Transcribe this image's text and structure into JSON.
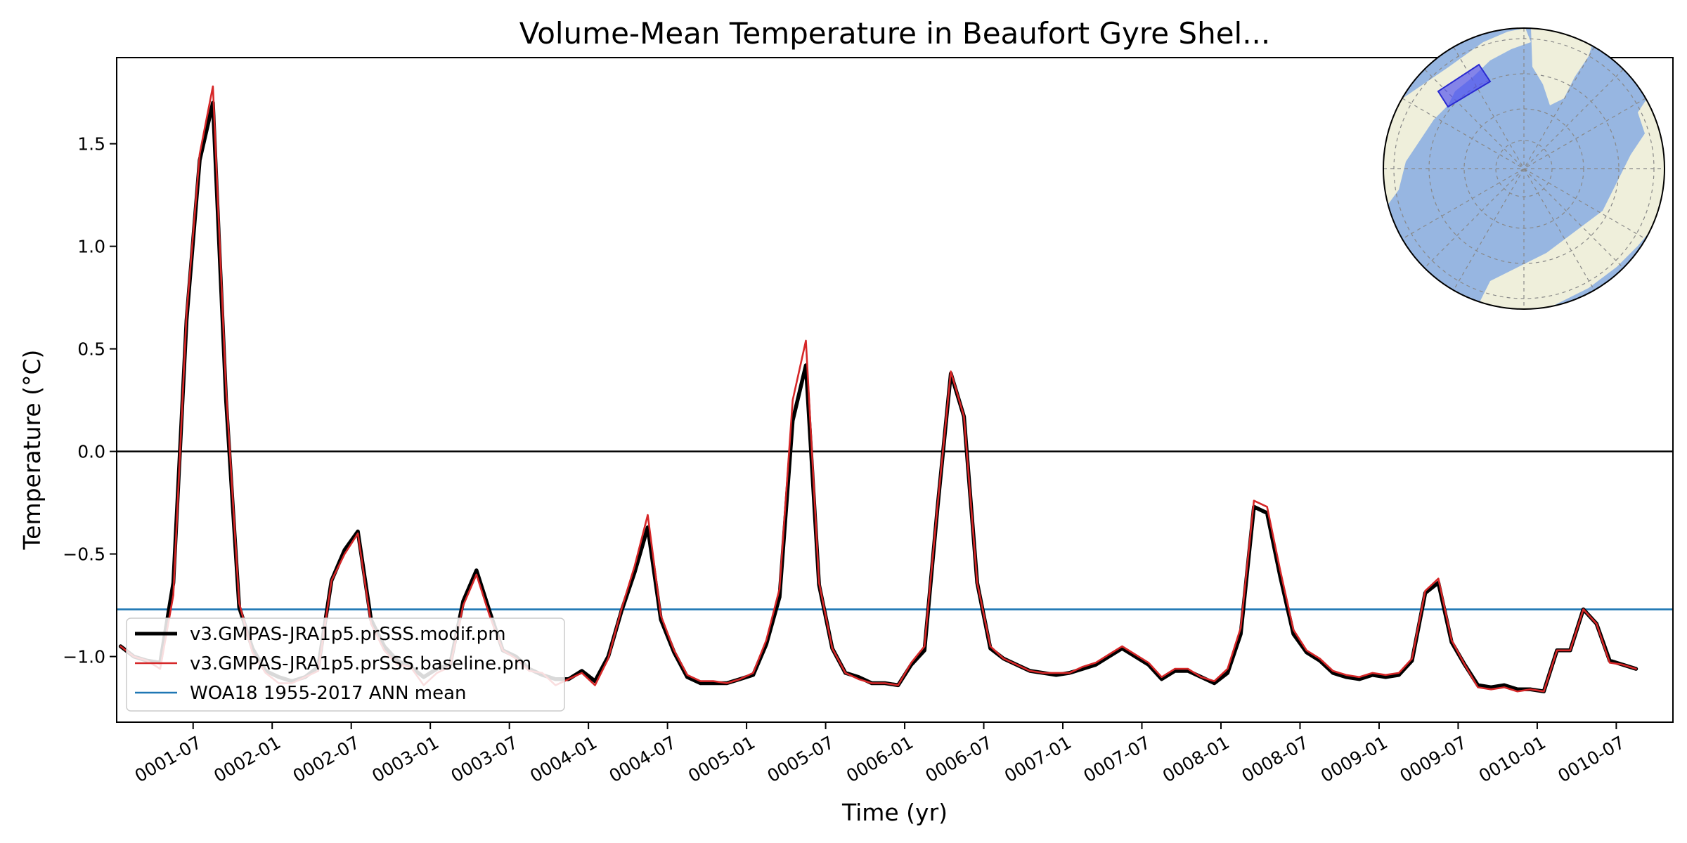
{
  "chart_data": {
    "type": "line",
    "title": "Volume-Mean Temperature in Beaufort Gyre Shel...",
    "xlabel": "Time (yr)",
    "ylabel": "Temperature ($^\\circ$C)",
    "ylabel_display": "Temperature (°C)",
    "x_units": "months since 0001-01",
    "xlim": [
      0.2,
      118.3
    ],
    "ylim": [
      -1.32,
      1.92
    ],
    "x_ticks": [
      {
        "month": 6,
        "label": "0001-07"
      },
      {
        "month": 12,
        "label": "0002-01"
      },
      {
        "month": 18,
        "label": "0002-07"
      },
      {
        "month": 24,
        "label": "0003-01"
      },
      {
        "month": 30,
        "label": "0003-07"
      },
      {
        "month": 36,
        "label": "0004-01"
      },
      {
        "month": 42,
        "label": "0004-07"
      },
      {
        "month": 48,
        "label": "0005-01"
      },
      {
        "month": 54,
        "label": "0005-07"
      },
      {
        "month": 60,
        "label": "0006-01"
      },
      {
        "month": 66,
        "label": "0006-07"
      },
      {
        "month": 72,
        "label": "0007-01"
      },
      {
        "month": 78,
        "label": "0007-07"
      },
      {
        "month": 84,
        "label": "0008-01"
      },
      {
        "month": 90,
        "label": "0008-07"
      },
      {
        "month": 96,
        "label": "0009-01"
      },
      {
        "month": 102,
        "label": "0009-07"
      },
      {
        "month": 108,
        "label": "0010-01"
      },
      {
        "month": 114,
        "label": "0010-07"
      }
    ],
    "y_ticks": [
      {
        "value": 1.5,
        "label": "1.5"
      },
      {
        "value": 1.0,
        "label": "1.0"
      },
      {
        "value": 0.5,
        "label": "0.5"
      },
      {
        "value": 0.0,
        "label": "0.0"
      },
      {
        "value": -0.5,
        "label": "−0.5"
      },
      {
        "value": -1.0,
        "label": "−1.0"
      }
    ],
    "zero_line": 0.0,
    "legend_position": "lower-left",
    "inset_map": "north-polar stereographic map with the Beaufort Gyre shelf region highlighted",
    "series": [
      {
        "name": "v3.GMPAS-JRA1p5.prSSS.modif.pm",
        "color": "#000000",
        "style": "thick",
        "x_start": 0.5,
        "x_step": 1,
        "values": [
          -0.95,
          -1.0,
          -1.02,
          -1.03,
          -0.64,
          0.64,
          1.42,
          1.7,
          0.25,
          -0.76,
          -0.96,
          -1.07,
          -1.1,
          -1.12,
          -1.1,
          -1.05,
          -0.63,
          -0.48,
          -0.39,
          -0.82,
          -0.95,
          -1.02,
          -1.05,
          -1.1,
          -1.06,
          -1.04,
          -0.73,
          -0.58,
          -0.78,
          -0.97,
          -1.0,
          -1.06,
          -1.09,
          -1.11,
          -1.11,
          -1.07,
          -1.12,
          -1.0,
          -0.78,
          -0.59,
          -0.37,
          -0.82,
          -0.98,
          -1.1,
          -1.13,
          -1.13,
          -1.13,
          -1.11,
          -1.09,
          -0.94,
          -0.71,
          0.15,
          0.42,
          -0.65,
          -0.96,
          -1.08,
          -1.1,
          -1.13,
          -1.13,
          -1.14,
          -1.04,
          -0.97,
          -0.27,
          0.38,
          0.17,
          -0.64,
          -0.96,
          -1.01,
          -1.04,
          -1.07,
          -1.08,
          -1.09,
          -1.08,
          -1.06,
          -1.04,
          -1.0,
          -0.96,
          -1.0,
          -1.04,
          -1.11,
          -1.07,
          -1.07,
          -1.1,
          -1.13,
          -1.08,
          -0.89,
          -0.27,
          -0.3,
          -0.61,
          -0.89,
          -0.98,
          -1.02,
          -1.08,
          -1.1,
          -1.11,
          -1.09,
          -1.1,
          -1.09,
          -1.02,
          -0.69,
          -0.64,
          -0.93,
          -1.04,
          -1.14,
          -1.15,
          -1.14,
          -1.16,
          -1.16,
          -1.17,
          -0.97,
          -0.97,
          -0.77,
          -0.84,
          -1.02,
          -1.04,
          -1.06
        ]
      },
      {
        "name": "v3.GMPAS-JRA1p5.prSSS.baseline.pm",
        "color": "#d62728",
        "style": "thin",
        "x_start": 0.5,
        "x_step": 1,
        "values": [
          -0.95,
          -1.0,
          -1.02,
          -1.06,
          -0.7,
          0.67,
          1.45,
          1.78,
          0.3,
          -0.74,
          -0.98,
          -1.08,
          -1.13,
          -1.13,
          -1.1,
          -1.07,
          -0.63,
          -0.5,
          -0.4,
          -0.84,
          -0.97,
          -1.04,
          -1.05,
          -1.14,
          -1.08,
          -1.05,
          -0.75,
          -0.6,
          -0.8,
          -0.97,
          -1.01,
          -1.07,
          -1.08,
          -1.14,
          -1.11,
          -1.08,
          -1.14,
          -1.01,
          -0.77,
          -0.56,
          -0.31,
          -0.8,
          -0.97,
          -1.09,
          -1.12,
          -1.12,
          -1.13,
          -1.11,
          -1.08,
          -0.92,
          -0.67,
          0.25,
          0.54,
          -0.64,
          -0.96,
          -1.08,
          -1.11,
          -1.13,
          -1.13,
          -1.14,
          -1.03,
          -0.95,
          -0.26,
          0.39,
          0.17,
          -0.64,
          -0.95,
          -1.01,
          -1.04,
          -1.07,
          -1.08,
          -1.08,
          -1.08,
          -1.05,
          -1.03,
          -0.99,
          -0.95,
          -0.99,
          -1.03,
          -1.1,
          -1.06,
          -1.06,
          -1.1,
          -1.12,
          -1.06,
          -0.86,
          -0.24,
          -0.27,
          -0.58,
          -0.87,
          -0.97,
          -1.01,
          -1.07,
          -1.09,
          -1.1,
          -1.08,
          -1.09,
          -1.08,
          -1.01,
          -0.68,
          -0.62,
          -0.92,
          -1.04,
          -1.15,
          -1.16,
          -1.15,
          -1.17,
          -1.16,
          -1.17,
          -0.97,
          -0.97,
          -0.77,
          -0.84,
          -1.03,
          -1.04,
          -1.06
        ]
      },
      {
        "name": "WOA18 1955-2017 ANN mean",
        "color": "#1f77b4",
        "style": "horizontal",
        "value": -0.77
      }
    ]
  }
}
